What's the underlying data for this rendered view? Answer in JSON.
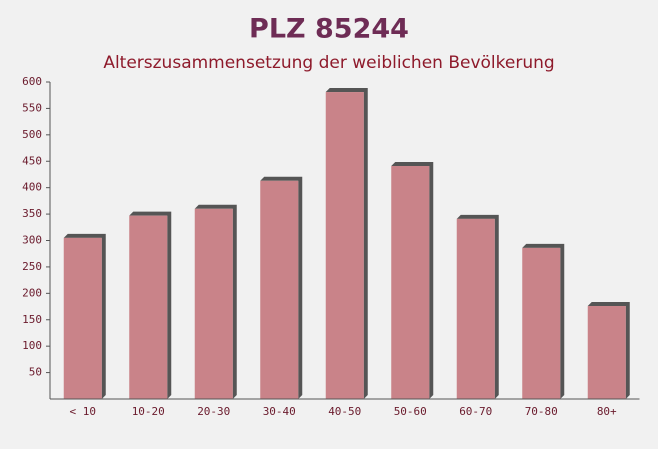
{
  "chart_data": {
    "type": "bar",
    "title": "PLZ 85244",
    "subtitle": "Alterszusammensetzung der weiblichen Bevölkerung",
    "categories": [
      "< 10",
      "10-20",
      "20-30",
      "30-40",
      "40-50",
      "50-60",
      "60-70",
      "70-80",
      "80+"
    ],
    "values": [
      305,
      347,
      360,
      413,
      581,
      441,
      341,
      286,
      176
    ],
    "color": "#c4777d",
    "ylim": [
      0,
      600
    ],
    "yticks": [
      50,
      100,
      150,
      200,
      250,
      300,
      350,
      400,
      450,
      500,
      550,
      600
    ]
  }
}
